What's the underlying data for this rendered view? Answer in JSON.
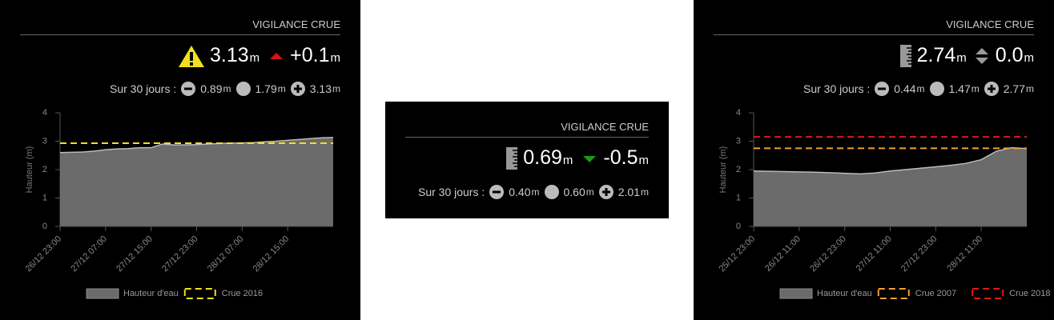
{
  "panels": [
    {
      "header": "VIGILANCE CRUE",
      "unit": "m",
      "level": "3.13",
      "change": "+0.1",
      "stats_label": "Sur 30 jours :",
      "min": "0.89",
      "avg": "1.79",
      "max": "3.13",
      "chart": {
        "type": "area",
        "y_label": "Hauteur (m)",
        "ylim": [
          0,
          4
        ],
        "yticks": [
          0,
          1,
          2,
          3,
          4
        ],
        "categories": [
          "26/12 23:00",
          null,
          null,
          null,
          "27/12 07:00",
          null,
          null,
          null,
          "27/12 15:00",
          null,
          null,
          null,
          "27/12 23:00",
          null,
          null,
          null,
          "28/12 07:00",
          null,
          null,
          null,
          "28/12 15:00",
          null,
          null,
          null,
          null
        ],
        "series": [
          {
            "name": "Hauteur d'eau",
            "color": "#6b6b6b",
            "values": [
              2.6,
              2.61,
              2.62,
              2.65,
              2.7,
              2.73,
              2.74,
              2.77,
              2.77,
              2.9,
              2.87,
              2.87,
              2.88,
              2.9,
              2.92,
              2.93,
              2.94,
              2.95,
              2.98,
              3.0,
              3.03,
              3.06,
              3.09,
              3.12,
              3.13
            ]
          }
        ],
        "thresholds": [
          {
            "name": "Crue 2016",
            "color": "#f0e020",
            "value": 2.93
          }
        ]
      }
    },
    {
      "header": "VIGILANCE CRUE",
      "unit": "m",
      "level": "0.69",
      "change": "-0.5",
      "stats_label": "Sur 30 jours :",
      "min": "0.40",
      "avg": "0.60",
      "max": "2.01"
    },
    {
      "header": "VIGILANCE CRUE",
      "unit": "m",
      "level": "2.74",
      "change": "0.0",
      "stats_label": "Sur 30 jours :",
      "min": "0.44",
      "avg": "1.47",
      "max": "2.77",
      "chart": {
        "type": "area",
        "y_label": "Hauteur (m)",
        "ylim": [
          0,
          4
        ],
        "yticks": [
          0,
          1,
          2,
          3,
          4
        ],
        "categories": [
          "25/12 23:00",
          null,
          null,
          "26/12 11:00",
          null,
          null,
          "26/12 23:00",
          null,
          null,
          "27/12 11:00",
          null,
          null,
          "27/12 23:00",
          null,
          null,
          "28/12 11:00",
          null,
          null,
          null
        ],
        "series": [
          {
            "name": "Hauteur d'eau",
            "color": "#6b6b6b",
            "values": [
              1.95,
              1.94,
              1.93,
              1.92,
              1.91,
              1.89,
              1.87,
              1.85,
              1.88,
              1.95,
              2.0,
              2.05,
              2.1,
              2.15,
              2.22,
              2.35,
              2.65,
              2.77,
              2.74
            ]
          }
        ],
        "thresholds": [
          {
            "name": "Crue 2007",
            "color": "#f0a030",
            "value": 2.75
          },
          {
            "name": "Crue 2018",
            "color": "#e01818",
            "value": 3.15
          }
        ]
      }
    }
  ]
}
